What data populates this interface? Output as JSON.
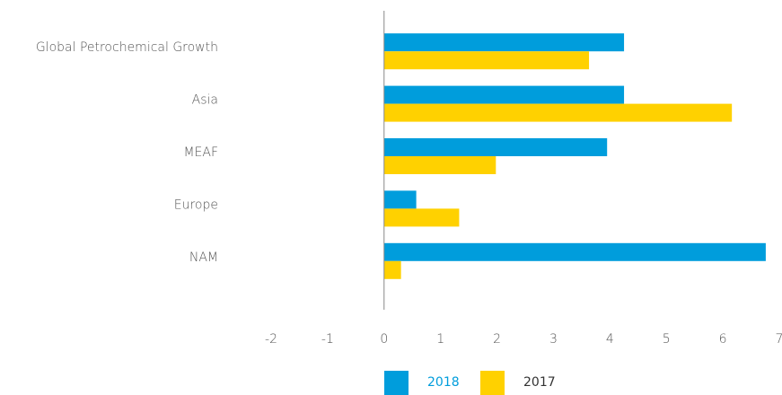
{
  "chart_data": {
    "type": "bar",
    "orientation": "horizontal",
    "categories": [
      "Global Petrochemical Growth",
      "Asia",
      "MEAF",
      "Europe",
      "NAM"
    ],
    "series": [
      {
        "name": "2018",
        "color": "#009ddc",
        "values": [
          4.25,
          4.25,
          3.95,
          0.57,
          6.76
        ]
      },
      {
        "name": "2017",
        "color": "#ffd100",
        "values": [
          3.63,
          6.16,
          1.98,
          1.33,
          0.3
        ]
      }
    ],
    "xlim": [
      -2,
      7
    ],
    "xticks": [
      -2,
      -1,
      0,
      1,
      2,
      3,
      4,
      5,
      6,
      7
    ],
    "grid": false,
    "legend": "bottom"
  }
}
